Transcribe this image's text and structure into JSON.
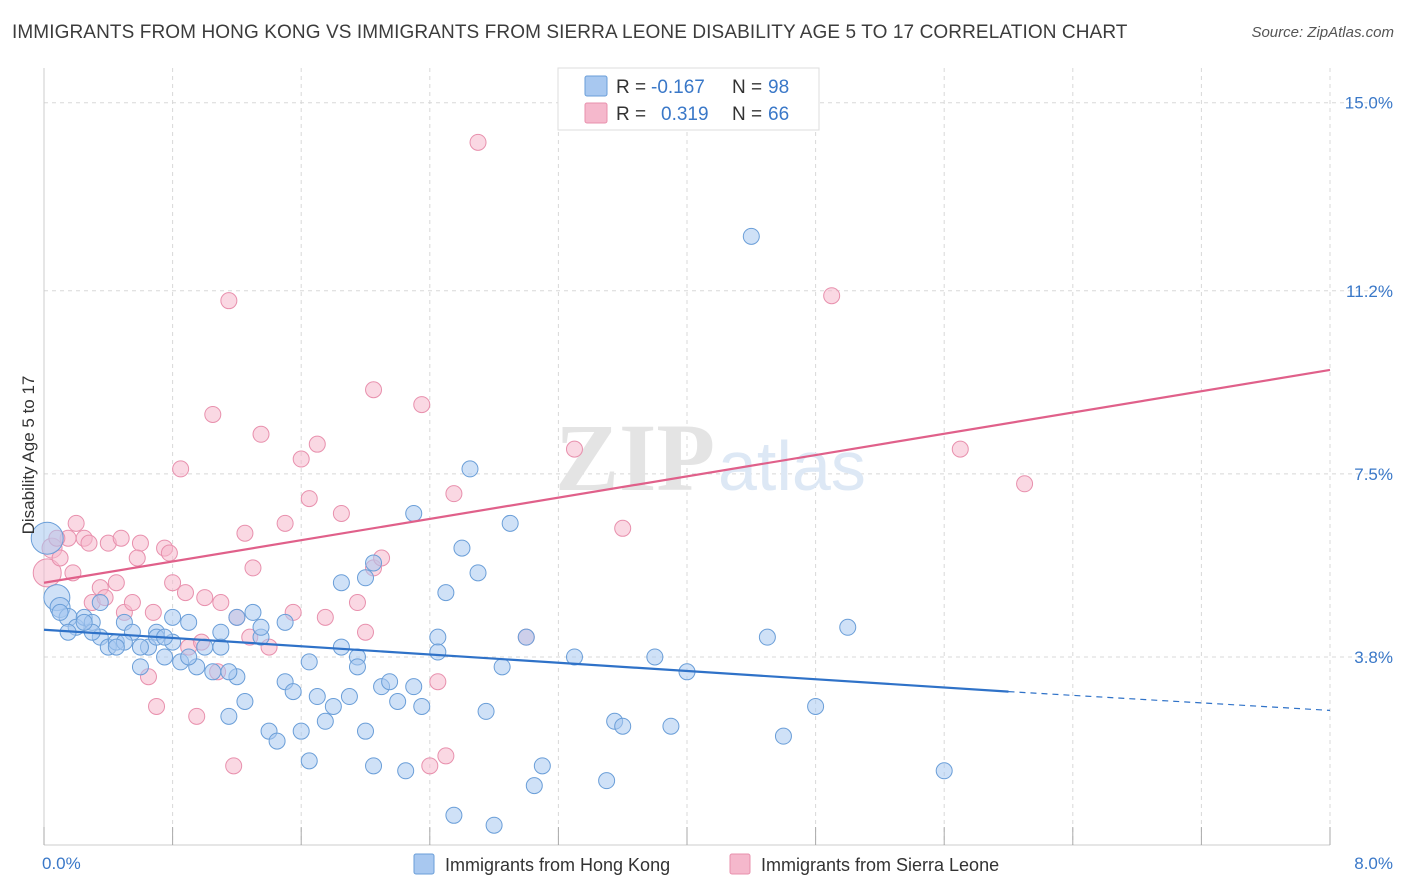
{
  "title": "IMMIGRANTS FROM HONG KONG VS IMMIGRANTS FROM SIERRA LEONE DISABILITY AGE 5 TO 17 CORRELATION CHART",
  "source": "Source: ZipAtlas.com",
  "watermark": {
    "zip": "ZIP",
    "atlas": "atlas"
  },
  "colors": {
    "hk_fill": "#a8c8f0",
    "hk_stroke": "#6a9ed8",
    "hk_line": "#2f72c8",
    "sl_fill": "#f5b8cc",
    "sl_stroke": "#e890ad",
    "sl_line": "#e0608a",
    "grid": "#d8d8d8",
    "tick_label": "#3a78c8"
  },
  "legend": {
    "rows": [
      {
        "r_label": "R =",
        "r_value": "-0.167",
        "n_label": "N =",
        "n_value": "98"
      },
      {
        "r_label": "R =",
        "r_value": "0.319",
        "n_label": "N =",
        "n_value": "66"
      }
    ]
  },
  "chart_data": {
    "type": "scatter",
    "title": "IMMIGRANTS FROM HONG KONG VS IMMIGRANTS FROM SIERRA LEONE DISABILITY AGE 5 TO 17 CORRELATION CHART",
    "xlabel": "",
    "ylabel": "Disability Age 5 to 17",
    "xlim": [
      0,
      8
    ],
    "ylim": [
      0,
      15.5
    ],
    "x_tick_labels": [
      "0.0%",
      "8.0%"
    ],
    "y_ticks": [
      3.8,
      7.5,
      11.2,
      15.0
    ],
    "y_tick_labels": [
      "3.8%",
      "7.5%",
      "11.2%",
      "15.0%"
    ],
    "grid": true,
    "legend_position": "top-center",
    "series": [
      {
        "name": "Immigrants from Hong Kong",
        "r": -0.167,
        "n": 98,
        "trend": {
          "x0": 0,
          "y0": 4.35,
          "x1": 6.0,
          "y1": 3.1,
          "dash_x1": 8.0,
          "dash_y1": 2.72
        },
        "points": [
          [
            0.02,
            6.2,
            16
          ],
          [
            0.08,
            5.0,
            13
          ],
          [
            0.1,
            4.8,
            10
          ],
          [
            0.15,
            4.6,
            9
          ],
          [
            0.2,
            4.4,
            8
          ],
          [
            0.25,
            4.6,
            8
          ],
          [
            0.3,
            4.5,
            8
          ],
          [
            0.35,
            4.2,
            8
          ],
          [
            0.4,
            4.0,
            8
          ],
          [
            0.45,
            4.1,
            8
          ],
          [
            0.5,
            4.5,
            8
          ],
          [
            0.55,
            4.3,
            8
          ],
          [
            0.6,
            3.6,
            8
          ],
          [
            0.65,
            4.0,
            8
          ],
          [
            0.7,
            4.3,
            8
          ],
          [
            0.75,
            3.8,
            8
          ],
          [
            0.8,
            4.1,
            8
          ],
          [
            0.85,
            3.7,
            8
          ],
          [
            0.9,
            4.5,
            8
          ],
          [
            0.95,
            3.6,
            8
          ],
          [
            1.0,
            4.0,
            8
          ],
          [
            1.05,
            3.5,
            8
          ],
          [
            1.1,
            4.3,
            8
          ],
          [
            1.15,
            2.6,
            8
          ],
          [
            1.2,
            3.4,
            8
          ],
          [
            1.25,
            2.9,
            8
          ],
          [
            1.3,
            4.7,
            8
          ],
          [
            1.35,
            4.2,
            8
          ],
          [
            1.4,
            2.3,
            8
          ],
          [
            1.45,
            2.1,
            8
          ],
          [
            1.5,
            3.3,
            8
          ],
          [
            1.55,
            3.1,
            8
          ],
          [
            1.6,
            2.3,
            8
          ],
          [
            1.65,
            1.7,
            8
          ],
          [
            1.7,
            3.0,
            8
          ],
          [
            1.75,
            2.5,
            8
          ],
          [
            1.8,
            2.8,
            8
          ],
          [
            1.85,
            4.0,
            8
          ],
          [
            1.9,
            3.0,
            8
          ],
          [
            1.95,
            3.8,
            8
          ],
          [
            2.0,
            2.3,
            8
          ],
          [
            2.05,
            1.6,
            8
          ],
          [
            2.1,
            3.2,
            8
          ],
          [
            2.15,
            3.3,
            8
          ],
          [
            2.2,
            2.9,
            8
          ],
          [
            2.25,
            1.5,
            8
          ],
          [
            2.35,
            2.8,
            8
          ],
          [
            2.45,
            4.2,
            8
          ],
          [
            2.5,
            5.1,
            8
          ],
          [
            2.55,
            0.6,
            8
          ],
          [
            2.6,
            6.0,
            8
          ],
          [
            2.7,
            5.5,
            8
          ],
          [
            2.75,
            2.7,
            8
          ],
          [
            2.8,
            0.4,
            8
          ],
          [
            2.85,
            3.6,
            8
          ],
          [
            2.9,
            6.5,
            8
          ],
          [
            3.0,
            4.2,
            8
          ],
          [
            3.05,
            1.2,
            8
          ],
          [
            3.1,
            1.6,
            8
          ],
          [
            3.5,
            1.3,
            8
          ],
          [
            3.55,
            2.5,
            8
          ],
          [
            3.6,
            2.4,
            8
          ],
          [
            3.8,
            3.8,
            8
          ],
          [
            4.0,
            3.5,
            8
          ],
          [
            4.5,
            4.2,
            8
          ],
          [
            4.6,
            2.2,
            8
          ],
          [
            4.8,
            2.8,
            8
          ],
          [
            5.6,
            1.5,
            8
          ],
          [
            5.0,
            4.4,
            8
          ],
          [
            4.4,
            12.3,
            8
          ],
          [
            0.3,
            4.3,
            8
          ],
          [
            0.5,
            4.1,
            8
          ],
          [
            0.7,
            4.2,
            8
          ],
          [
            0.9,
            3.8,
            8
          ],
          [
            1.1,
            4.0,
            8
          ],
          [
            1.2,
            4.6,
            8
          ],
          [
            1.35,
            4.4,
            8
          ],
          [
            1.5,
            4.5,
            8
          ],
          [
            1.65,
            3.7,
            8
          ],
          [
            1.85,
            5.3,
            8
          ],
          [
            2.0,
            5.4,
            8
          ],
          [
            2.3,
            6.7,
            8
          ],
          [
            2.45,
            3.9,
            8
          ],
          [
            2.05,
            5.7,
            8
          ],
          [
            2.65,
            7.6,
            8
          ],
          [
            2.3,
            3.2,
            8
          ],
          [
            1.95,
            3.6,
            8
          ],
          [
            1.15,
            3.5,
            8
          ],
          [
            0.8,
            4.6,
            8
          ],
          [
            0.6,
            4.0,
            8
          ],
          [
            0.45,
            4.0,
            8
          ],
          [
            0.35,
            4.9,
            8
          ],
          [
            0.25,
            4.5,
            8
          ],
          [
            0.15,
            4.3,
            8
          ],
          [
            0.1,
            4.7,
            8
          ],
          [
            3.9,
            2.4,
            8
          ],
          [
            3.3,
            3.8,
            8
          ],
          [
            0.75,
            4.2,
            8
          ]
        ]
      },
      {
        "name": "Immigrants from Sierra Leone",
        "r": 0.319,
        "n": 66,
        "trend": {
          "x0": 0,
          "y0": 5.3,
          "x1": 8.0,
          "y1": 9.6
        },
        "points": [
          [
            0.02,
            5.5,
            14
          ],
          [
            0.05,
            6.0,
            10
          ],
          [
            0.1,
            5.8,
            8
          ],
          [
            0.15,
            6.2,
            8
          ],
          [
            0.2,
            6.5,
            8
          ],
          [
            0.25,
            6.2,
            8
          ],
          [
            0.3,
            4.9,
            8
          ],
          [
            0.35,
            5.2,
            8
          ],
          [
            0.4,
            6.1,
            8
          ],
          [
            0.45,
            5.3,
            8
          ],
          [
            0.5,
            4.7,
            8
          ],
          [
            0.55,
            4.9,
            8
          ],
          [
            0.6,
            6.1,
            8
          ],
          [
            0.65,
            3.4,
            8
          ],
          [
            0.7,
            2.8,
            8
          ],
          [
            0.75,
            6.0,
            8
          ],
          [
            0.8,
            5.3,
            8
          ],
          [
            0.85,
            7.6,
            8
          ],
          [
            0.9,
            4.0,
            8
          ],
          [
            0.95,
            2.6,
            8
          ],
          [
            1.0,
            5.0,
            8
          ],
          [
            1.05,
            8.7,
            8
          ],
          [
            1.1,
            4.9,
            8
          ],
          [
            1.15,
            11.0,
            8
          ],
          [
            1.2,
            4.6,
            8
          ],
          [
            1.25,
            6.3,
            8
          ],
          [
            1.3,
            5.6,
            8
          ],
          [
            1.35,
            8.3,
            8
          ],
          [
            1.4,
            4.0,
            8
          ],
          [
            1.5,
            6.5,
            8
          ],
          [
            1.55,
            4.7,
            8
          ],
          [
            1.6,
            7.8,
            8
          ],
          [
            1.65,
            7.0,
            8
          ],
          [
            1.7,
            8.1,
            8
          ],
          [
            1.75,
            4.6,
            8
          ],
          [
            1.85,
            6.7,
            8
          ],
          [
            1.95,
            4.9,
            8
          ],
          [
            2.0,
            4.3,
            8
          ],
          [
            2.05,
            5.6,
            8
          ],
          [
            2.1,
            5.8,
            8
          ],
          [
            2.05,
            9.2,
            8
          ],
          [
            2.35,
            8.9,
            8
          ],
          [
            2.4,
            1.6,
            8
          ],
          [
            2.45,
            3.3,
            8
          ],
          [
            2.5,
            1.8,
            8
          ],
          [
            2.55,
            7.1,
            8
          ],
          [
            2.7,
            14.2,
            8
          ],
          [
            3.0,
            4.2,
            8
          ],
          [
            3.3,
            8.0,
            8
          ],
          [
            3.6,
            6.4,
            8
          ],
          [
            4.9,
            11.1,
            8
          ],
          [
            5.7,
            8.0,
            8
          ],
          [
            6.1,
            7.3,
            8
          ],
          [
            0.08,
            6.2,
            8
          ],
          [
            0.18,
            5.5,
            8
          ],
          [
            0.28,
            6.1,
            8
          ],
          [
            0.38,
            5.0,
            8
          ],
          [
            0.48,
            6.2,
            8
          ],
          [
            0.58,
            5.8,
            8
          ],
          [
            0.68,
            4.7,
            8
          ],
          [
            0.78,
            5.9,
            8
          ],
          [
            0.88,
            5.1,
            8
          ],
          [
            0.98,
            4.1,
            8
          ],
          [
            1.08,
            3.5,
            8
          ],
          [
            1.18,
            1.6,
            8
          ],
          [
            1.28,
            4.2,
            8
          ]
        ]
      }
    ]
  },
  "bottom_legend": {
    "items": [
      {
        "label": "Immigrants from Hong Kong"
      },
      {
        "label": "Immigrants from Sierra Leone"
      }
    ]
  }
}
